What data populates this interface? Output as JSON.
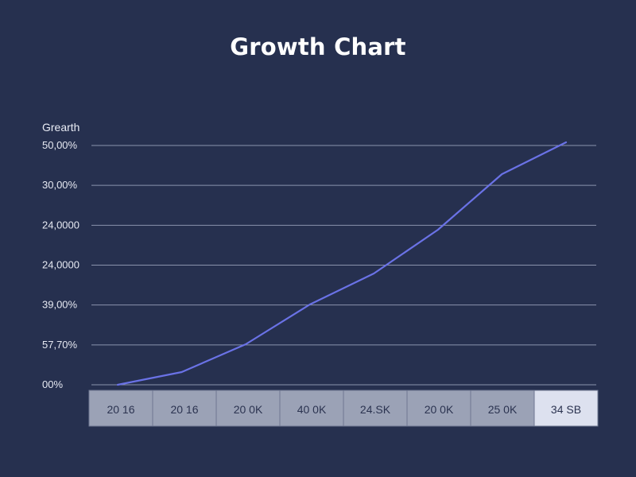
{
  "chart_data": {
    "type": "line",
    "title": "Growth Chart",
    "ylabel": "Grearth",
    "xlabel": "",
    "grid": true,
    "y_tick_labels": [
      "50,00%",
      "30,00%",
      "24,0000",
      "24,0000",
      "39,00%",
      "57,70%",
      "00%"
    ],
    "categories": [
      "20 16",
      "20 16",
      "20 0K",
      "40 0K",
      "24.SK",
      "20 0K",
      "25 0K",
      "34 SB"
    ],
    "highlighted_category": "34 SB",
    "series": [
      {
        "values": [
          0,
          3.2,
          10.2,
          20.2,
          28,
          39,
          53,
          61
        ]
      }
    ],
    "ylim": [
      0,
      61
    ],
    "colors": {
      "background": "#26304f",
      "line": "#6a72e6",
      "grid": "#8a93ad",
      "axis_band": "#9ba2b6",
      "axis_band_highlight": "#dde1ef"
    }
  }
}
